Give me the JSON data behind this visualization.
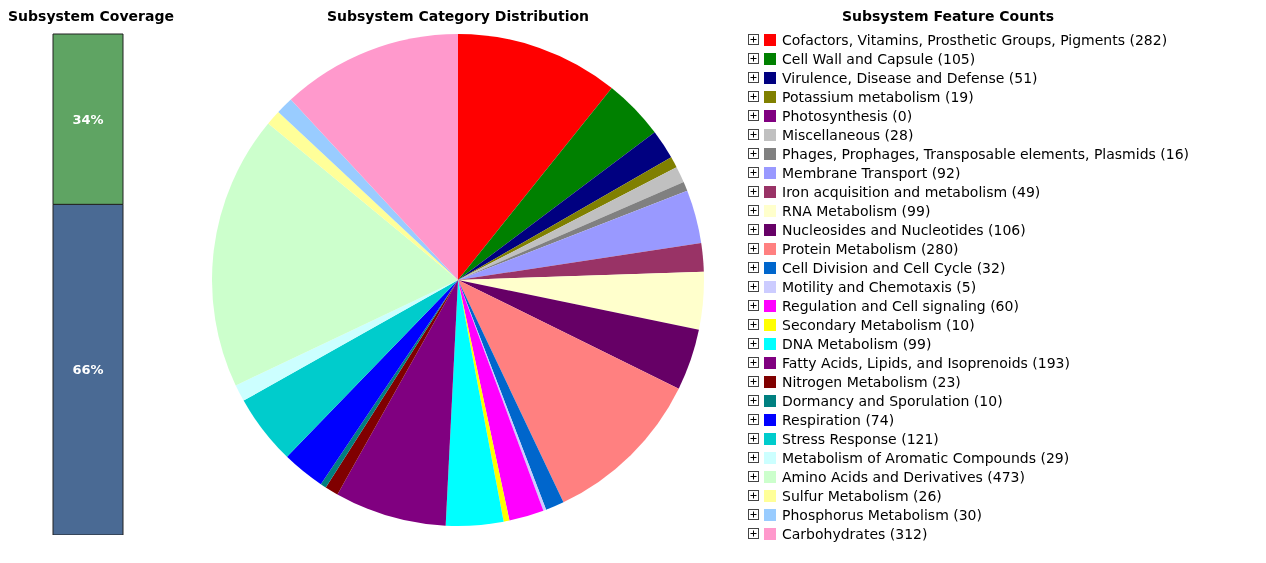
{
  "chart_data": [
    {
      "type": "bar",
      "title": "Subsystem Coverage",
      "categories": [
        null
      ],
      "stacked": true,
      "series": [
        {
          "color": "#4a6a94",
          "values": [
            66
          ],
          "value_labels": [
            "66%"
          ]
        },
        {
          "color": "#5fa463",
          "values": [
            34
          ],
          "value_labels": [
            "34%"
          ]
        }
      ]
    },
    {
      "type": "pie",
      "title": "Subsystem Category Distribution",
      "legend_title": "Subsystem Feature Counts",
      "legend": "right",
      "categories": [
        "Cofactors, Vitamins, Prosthetic Groups, Pigments (282)",
        "Cell Wall and Capsule (105)",
        "Virulence, Disease and Defense (51)",
        "Potassium metabolism (19)",
        "Photosynthesis (0)",
        "Miscellaneous (28)",
        "Phages, Prophages, Transposable elements, Plasmids (16)",
        "Membrane Transport (92)",
        "Iron acquisition and metabolism (49)",
        "RNA Metabolism (99)",
        "Nucleosides and Nucleotides (106)",
        "Protein Metabolism (280)",
        "Cell Division and Cell Cycle (32)",
        "Motility and Chemotaxis (5)",
        "Regulation and Cell signaling (60)",
        "Secondary Metabolism (10)",
        "DNA Metabolism (99)",
        "Fatty Acids, Lipids, and Isoprenoids (193)",
        "Nitrogen Metabolism (23)",
        "Dormancy and Sporulation (10)",
        "Respiration (74)",
        "Stress Response (121)",
        "Metabolism of Aromatic Compounds (29)",
        "Amino Acids and Derivatives (473)",
        "Sulfur Metabolism (26)",
        "Phosphorus Metabolism (30)",
        "Carbohydrates (312)"
      ],
      "values": [
        282,
        105,
        51,
        19,
        0,
        28,
        16,
        92,
        49,
        99,
        106,
        280,
        32,
        5,
        60,
        10,
        99,
        193,
        23,
        10,
        74,
        121,
        29,
        473,
        26,
        30,
        312
      ],
      "colors": [
        "#ff0000",
        "#008000",
        "#000080",
        "#808000",
        "#800080",
        "#c0c0c0",
        "#808080",
        "#9999ff",
        "#993366",
        "#ffffcc",
        "#660066",
        "#ff8080",
        "#0066cc",
        "#ccccff",
        "#ff00ff",
        "#ffff00",
        "#00ffff",
        "#800080",
        "#800000",
        "#008080",
        "#0000ff",
        "#00cccc",
        "#ccffff",
        "#ccffcc",
        "#ffff99",
        "#99ccff",
        "#ff99cc"
      ]
    }
  ]
}
